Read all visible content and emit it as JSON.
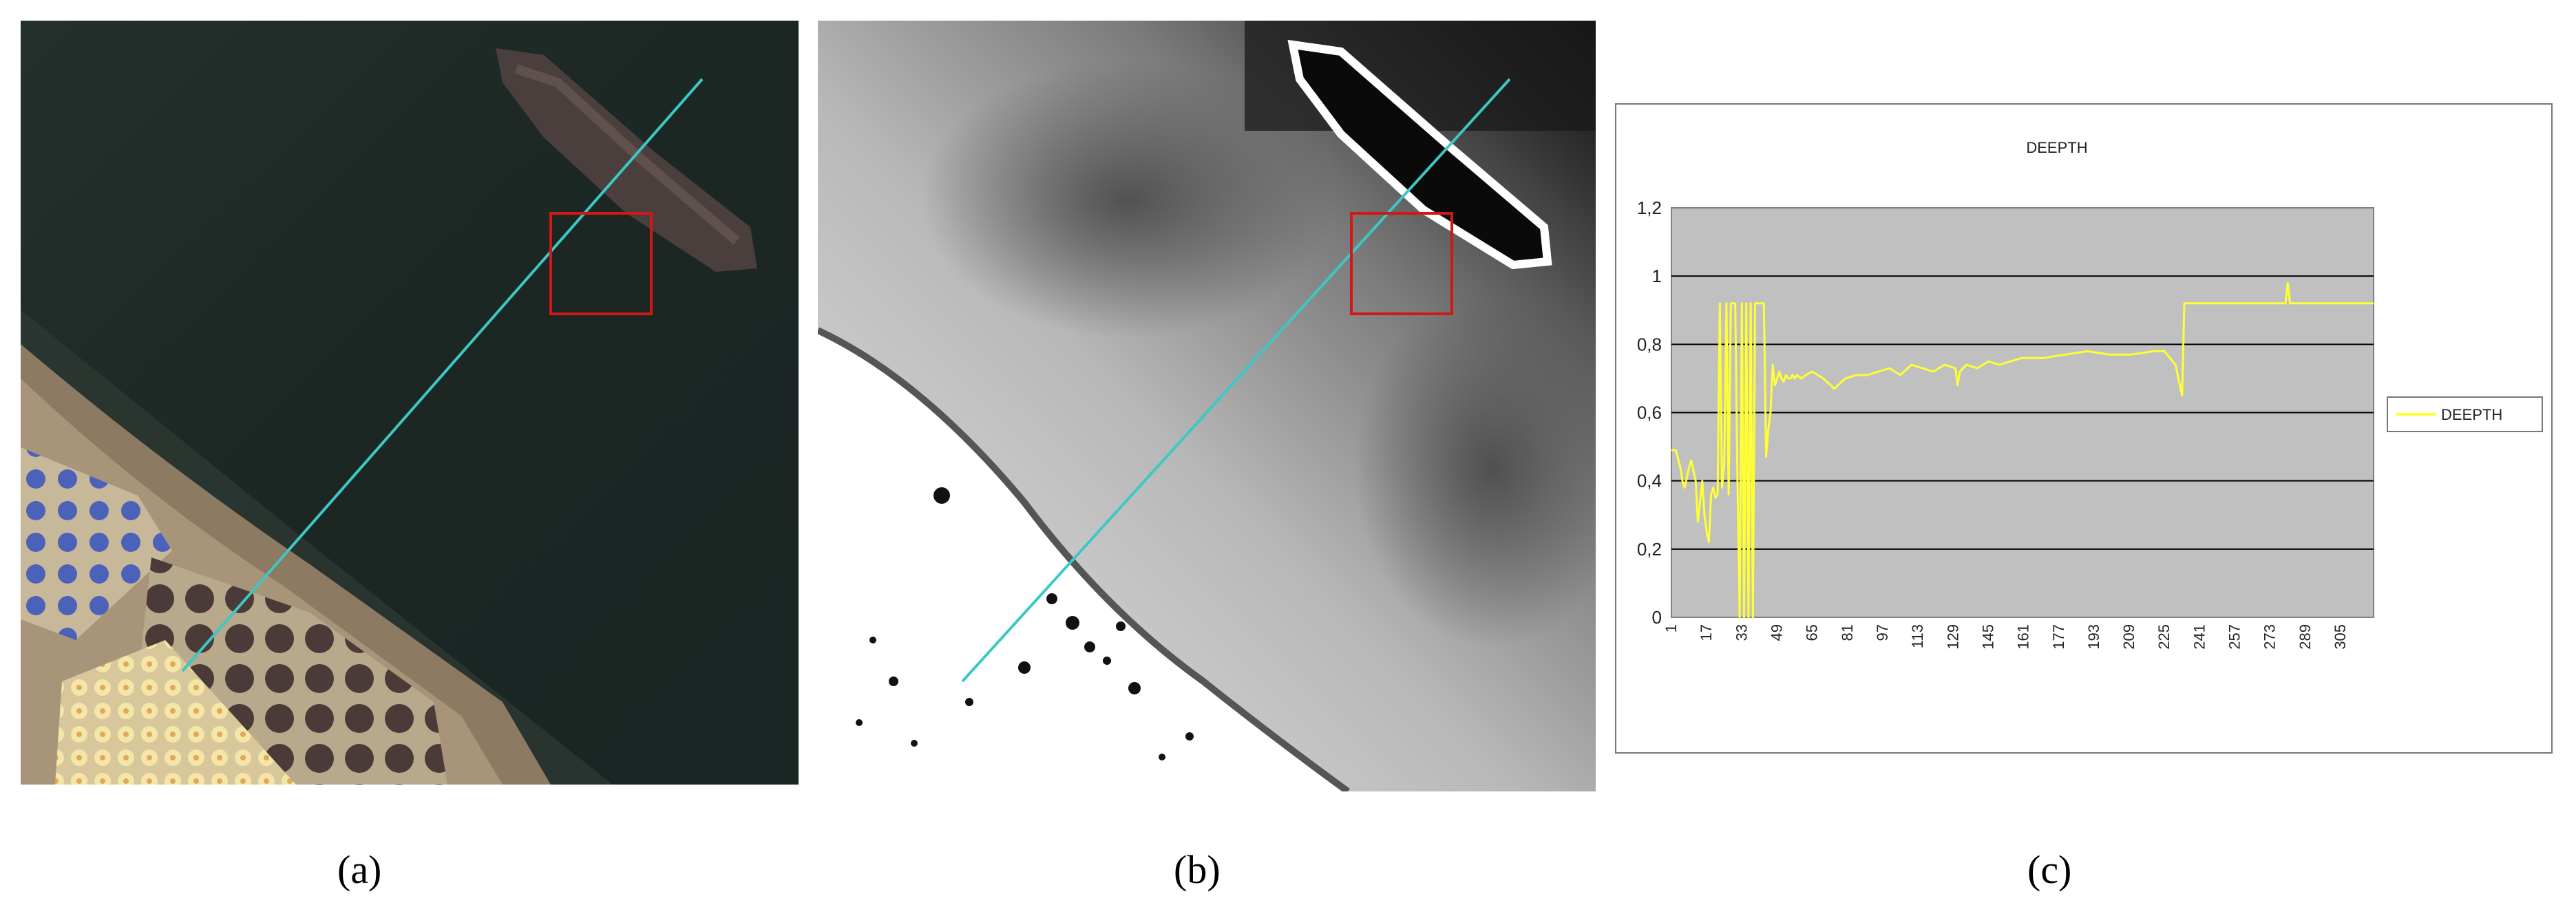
{
  "panels": [
    {
      "label": "(a)"
    },
    {
      "label": "(b)"
    },
    {
      "label": "(c)"
    }
  ],
  "colors": {
    "transect": "#3cc8c4",
    "roi_box": "#d01818",
    "series": "#ffff33",
    "plot_bg": "#c0c0c0"
  },
  "chart_data": {
    "type": "line",
    "title": "DEEPTH",
    "xlabel": "",
    "ylabel": "",
    "ylim": [
      0,
      1.2
    ],
    "xlim": [
      1,
      320
    ],
    "y_ticks": [
      "0",
      "0,2",
      "0,4",
      "0,6",
      "0,8",
      "1",
      "1,2"
    ],
    "x_ticks": [
      "1",
      "17",
      "33",
      "49",
      "65",
      "81",
      "97",
      "113",
      "129",
      "145",
      "161",
      "177",
      "193",
      "209",
      "225",
      "241",
      "257",
      "273",
      "289",
      "305"
    ],
    "grid": true,
    "legend": "right",
    "series": [
      {
        "name": "DEEPTH",
        "x": [
          1,
          3,
          5,
          6,
          7,
          8,
          9,
          10,
          11,
          12,
          13,
          14,
          15,
          16,
          17,
          18,
          19,
          20,
          21,
          22,
          23,
          24,
          25,
          26,
          27,
          28,
          29,
          30,
          31,
          32,
          33,
          34,
          35,
          36,
          37,
          38,
          39,
          40,
          41,
          42,
          43,
          44,
          45,
          46,
          47,
          48,
          49,
          50,
          51,
          52,
          53,
          54,
          55,
          56,
          57,
          58,
          60,
          62,
          65,
          70,
          75,
          80,
          85,
          90,
          95,
          100,
          105,
          110,
          115,
          120,
          125,
          130,
          131,
          132,
          135,
          140,
          145,
          150,
          160,
          170,
          180,
          190,
          200,
          210,
          220,
          225,
          230,
          233,
          234,
          235,
          236,
          240,
          260,
          270,
          280,
          281,
          282,
          283,
          290,
          300,
          305,
          320
        ],
        "y": [
          0.49,
          0.49,
          0.44,
          0.4,
          0.38,
          0.41,
          0.44,
          0.46,
          0.43,
          0.4,
          0.28,
          0.34,
          0.4,
          0.3,
          0.25,
          0.22,
          0.36,
          0.38,
          0.35,
          0.36,
          0.92,
          0.38,
          0.45,
          0.92,
          0.36,
          0.92,
          0.92,
          0.92,
          0.4,
          0.0,
          0.92,
          0.0,
          0.92,
          0.0,
          0.92,
          0.0,
          0.92,
          0.92,
          0.92,
          0.92,
          0.92,
          0.47,
          0.55,
          0.6,
          0.74,
          0.68,
          0.7,
          0.72,
          0.7,
          0.69,
          0.71,
          0.7,
          0.7,
          0.71,
          0.7,
          0.71,
          0.7,
          0.71,
          0.72,
          0.7,
          0.67,
          0.7,
          0.71,
          0.71,
          0.72,
          0.73,
          0.71,
          0.74,
          0.73,
          0.72,
          0.74,
          0.73,
          0.68,
          0.72,
          0.74,
          0.73,
          0.75,
          0.74,
          0.76,
          0.76,
          0.77,
          0.78,
          0.77,
          0.77,
          0.78,
          0.78,
          0.74,
          0.65,
          0.92,
          0.92,
          0.92,
          0.92,
          0.92,
          0.92,
          0.92,
          0.98,
          0.92,
          0.92,
          0.92,
          0.92,
          0.92,
          0.92
        ]
      }
    ]
  }
}
